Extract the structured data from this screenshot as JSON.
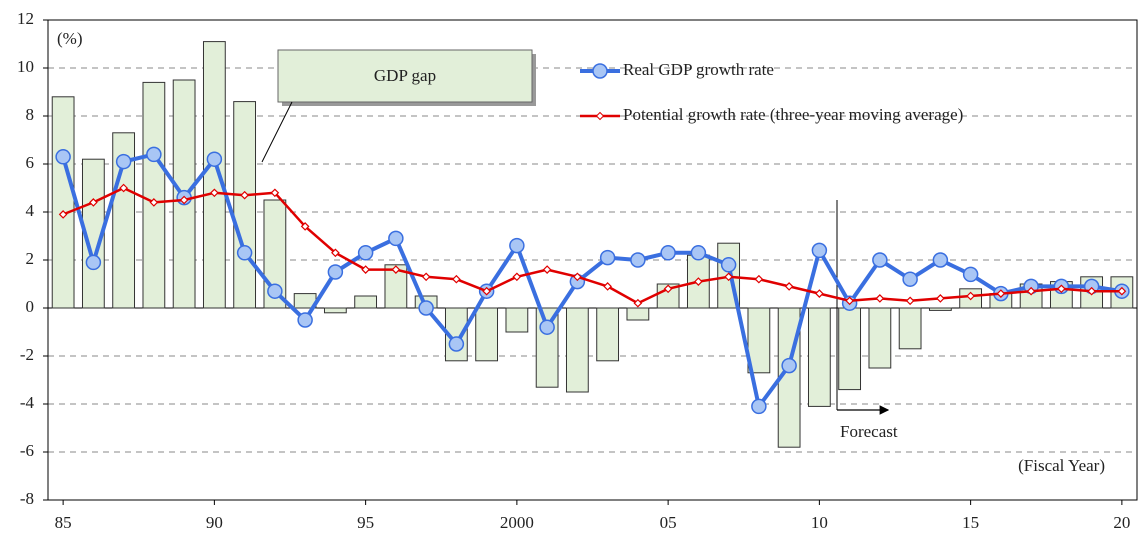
{
  "chart_data": {
    "type": "bar",
    "y_unit": "(%)",
    "x_label": "(Fiscal Year)",
    "annotations": [
      {
        "text": "GDP gap"
      },
      {
        "text": "Forecast"
      }
    ],
    "categories": [
      "85",
      null,
      null,
      null,
      null,
      "90",
      null,
      null,
      null,
      null,
      "95",
      null,
      null,
      null,
      null,
      "2000",
      null,
      null,
      null,
      null,
      "05",
      null,
      null,
      null,
      null,
      "10",
      null,
      null,
      null,
      null,
      "15",
      null,
      null,
      null,
      null,
      "20"
    ],
    "ylim": [
      -8,
      12
    ],
    "yticks": [
      -8,
      -6,
      -4,
      -2,
      0,
      2,
      4,
      6,
      8,
      10,
      12
    ],
    "grid": true,
    "legend": "top-right",
    "series": [
      {
        "name": "GDP gap",
        "type": "bar",
        "color": "#e2efd9",
        "values": [
          8.8,
          6.2,
          7.3,
          9.4,
          9.5,
          11.1,
          8.6,
          4.5,
          0.6,
          -0.2,
          0.5,
          1.8,
          0.5,
          -2.2,
          -2.2,
          -1.0,
          -3.3,
          -3.5,
          -2.2,
          -0.5,
          1.0,
          2.2,
          2.7,
          -2.7,
          -5.8,
          -4.1,
          -3.4,
          -2.5,
          -1.7,
          -0.1,
          0.8,
          0.6,
          1.0,
          1.1,
          1.3,
          1.3
        ]
      },
      {
        "name": "Real GDP growth rate",
        "type": "line",
        "marker": "circle",
        "color": "#3a6fe0",
        "values": [
          6.3,
          1.9,
          6.1,
          6.4,
          4.6,
          6.2,
          2.3,
          0.7,
          -0.5,
          1.5,
          2.3,
          2.9,
          0.0,
          -1.5,
          0.7,
          2.6,
          -0.8,
          1.1,
          2.1,
          2.0,
          2.3,
          2.3,
          1.8,
          -4.1,
          -2.4,
          2.4,
          0.2,
          2.0,
          1.2,
          2.0,
          1.4,
          0.6,
          0.9,
          0.9,
          0.9,
          0.7
        ]
      },
      {
        "name": "Potential growth rate (three-year moving average)",
        "type": "line",
        "marker": "diamond",
        "color": "#e00000",
        "values": [
          3.9,
          4.4,
          5.0,
          4.4,
          4.5,
          4.8,
          4.7,
          4.8,
          3.4,
          2.3,
          1.6,
          1.6,
          1.3,
          1.2,
          0.7,
          1.3,
          1.6,
          1.3,
          0.9,
          0.2,
          0.8,
          1.1,
          1.3,
          1.2,
          0.9,
          0.6,
          0.3,
          0.4,
          0.3,
          0.4,
          0.5,
          0.6,
          0.7,
          0.8,
          0.7,
          0.7
        ]
      }
    ]
  }
}
